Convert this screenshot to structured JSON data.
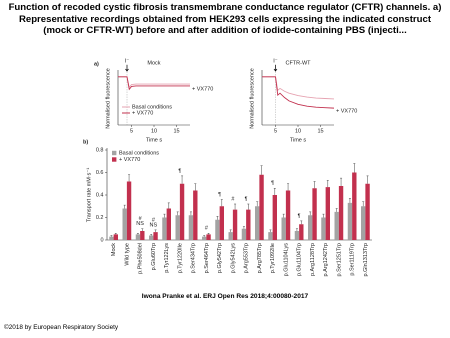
{
  "header": {
    "title": "Function of recoded cystic fibrosis transmembrane conductance regulator (CFTR) channels. a) Representative recordings obtained from HEK293 cells expressing the indicated construct (mock or CFTR-WT) before and after addition of iodide-containing PBS (injecti..."
  },
  "chart_data": [
    {
      "type": "line",
      "panel_label": "a)",
      "title": "Mock",
      "x_label": "Time s",
      "y_label": "Normalised fluorescence",
      "arrow": {
        "label": "I⁻",
        "x": 4
      },
      "x": [
        2,
        3,
        4,
        4.5,
        5,
        6,
        8,
        10,
        12,
        14,
        16,
        18
      ],
      "series": [
        {
          "name": "Basal conditions",
          "color": "#e6a3b1",
          "values": [
            1,
            1,
            1,
            0.78,
            0.84,
            0.85,
            0.85,
            0.85,
            0.85,
            0.85,
            0.85,
            0.85
          ]
        },
        {
          "name": "+ VX770",
          "color": "#c2304e",
          "end_label": true,
          "values": [
            1,
            1,
            1,
            0.74,
            0.8,
            0.81,
            0.81,
            0.81,
            0.81,
            0.81,
            0.81,
            0.81
          ]
        }
      ],
      "legend": true,
      "xlim": [
        2,
        18
      ],
      "xticks": [
        5,
        10,
        15
      ],
      "ylim": [
        0,
        1.1
      ]
    },
    {
      "type": "line",
      "title": "CFTR-WT",
      "x_label": "Time s",
      "y_label": "Normalised fluorescence",
      "arrow": {
        "label": "I⁻",
        "x": 5
      },
      "x": [
        2,
        3,
        4,
        5,
        5.5,
        6,
        7,
        8,
        10,
        12,
        14,
        16,
        18
      ],
      "series": [
        {
          "name": "Basal conditions",
          "color": "#e6a3b1",
          "values": [
            1,
            1,
            1,
            1,
            0.72,
            0.76,
            0.7,
            0.66,
            0.61,
            0.58,
            0.56,
            0.55,
            0.54
          ]
        },
        {
          "name": "+ VX770",
          "color": "#c2304e",
          "end_label": true,
          "values": [
            1,
            1,
            1,
            1,
            0.62,
            0.66,
            0.57,
            0.5,
            0.43,
            0.39,
            0.37,
            0.36,
            0.35
          ]
        }
      ],
      "xlim": [
        2,
        18
      ],
      "xticks": [
        5,
        10,
        15
      ],
      "ylim": [
        0,
        1.1
      ]
    },
    {
      "type": "bar",
      "panel_label": "b)",
      "y_label": "Transport rate mM·s⁻¹",
      "categories": [
        "Mock",
        "Wild type",
        "p.Phe508del",
        "p.Glu60Trp",
        "p.Tyr122Lys",
        "p.Tyr1220Ile",
        "p.Ser434Trp",
        "p.Ser464Trp",
        "p.Gly542Trp",
        "p.Gly542Lys",
        "p.Arg553Trp",
        "p.Arg785Trp",
        "p.Tyr1092Ile",
        "p.Glu1104Lys",
        "p.Glu1104Trp",
        "p.Arg1128Trp",
        "p.Arg1242Trp",
        "p.Ser1251Trp",
        "p.Ser1119Trp",
        "p.Gln1313Trp"
      ],
      "series": [
        {
          "name": "Basal conditions",
          "color": "#a3a3a3",
          "values": [
            0.03,
            0.28,
            0.05,
            0.04,
            0.2,
            0.22,
            0.22,
            0.03,
            0.18,
            0.07,
            0.1,
            0.3,
            0.07,
            0.2,
            0.08,
            0.22,
            0.2,
            0.25,
            0.33,
            0.3
          ],
          "errors": [
            0.01,
            0.03,
            0.01,
            0.01,
            0.03,
            0.03,
            0.03,
            0.01,
            0.03,
            0.02,
            0.02,
            0.04,
            0.02,
            0.03,
            0.02,
            0.03,
            0.03,
            0.03,
            0.04,
            0.04
          ]
        },
        {
          "name": "+ VX770",
          "color": "#c2304e",
          "values": [
            0.05,
            0.52,
            0.08,
            0.07,
            0.28,
            0.5,
            0.44,
            0.05,
            0.3,
            0.27,
            0.27,
            0.58,
            0.4,
            0.44,
            0.14,
            0.46,
            0.47,
            0.48,
            0.6,
            0.5
          ],
          "errors": [
            0.01,
            0.06,
            0.02,
            0.02,
            0.05,
            0.07,
            0.06,
            0.01,
            0.06,
            0.05,
            0.05,
            0.08,
            0.06,
            0.06,
            0.03,
            0.06,
            0.06,
            0.07,
            0.08,
            0.07
          ]
        }
      ],
      "annotations": [
        {
          "text": "NS",
          "category": "p.Phe508del"
        },
        {
          "text": "#",
          "category": "p.Phe508del"
        },
        {
          "text": "NS",
          "category": "p.Glu60Trp"
        },
        {
          "text": "#",
          "category": "p.Glu60Trp"
        },
        {
          "text": "¶",
          "category": "p.Tyr1220Ile"
        },
        {
          "text": "#",
          "category": "p.Ser464Trp"
        },
        {
          "text": "¶",
          "category": "p.Gly542Trp"
        },
        {
          "text": "#",
          "category": "p.Gly542Lys"
        },
        {
          "text": "¶",
          "category": "p.Arg553Trp"
        },
        {
          "text": "¶",
          "category": "p.Tyr1092Ile"
        },
        {
          "text": "¶",
          "category": "p.Glu1104Trp"
        }
      ],
      "legend": true,
      "ylim": [
        0,
        0.8
      ],
      "yticks": [
        0,
        0.2,
        0.4,
        0.6,
        0.8
      ]
    }
  ],
  "caption": "Iwona Pranke et al. ERJ Open Res 2018;4:00080-2017",
  "footer": "©2018 by European Respiratory Society"
}
